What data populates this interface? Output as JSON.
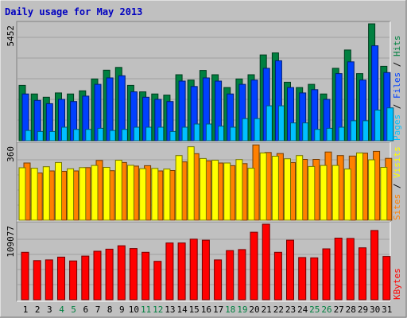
{
  "title": "Daily usage for May 2013",
  "colors": {
    "background": "#c0c0c0",
    "title": "#0000c0",
    "hits": "#008040",
    "files": "#0040ff",
    "pages": "#00c0ff",
    "visits": "#ffff00",
    "sites": "#ff8000",
    "kbytes": "#ff0000",
    "weekend_day": "#008040",
    "weekday": "#000000"
  },
  "chart_data": {
    "type": "bar",
    "categories": [
      "1",
      "2",
      "3",
      "4",
      "5",
      "6",
      "7",
      "8",
      "9",
      "10",
      "11",
      "12",
      "13",
      "14",
      "15",
      "16",
      "17",
      "18",
      "19",
      "20",
      "21",
      "22",
      "23",
      "24",
      "25",
      "26",
      "27",
      "28",
      "29",
      "30",
      "31"
    ],
    "weekend_days": [
      4,
      5,
      11,
      12,
      18,
      19,
      25,
      26
    ],
    "panels": [
      {
        "name": "hits-files-pages",
        "y_tick_label": "5452",
        "ymax": 5452,
        "legend": [
          "Pages",
          "Files",
          "Hits"
        ],
        "series": [
          {
            "name": "Hits",
            "values": [
              2580,
              2180,
              2030,
              2230,
              2180,
              2330,
              2880,
              3290,
              3420,
              2580,
              2280,
              2180,
              2130,
              3080,
              2830,
              3280,
              3080,
              2480,
              2880,
              3080,
              4000,
              4100,
              2730,
              2480,
              2630,
              2180,
              3380,
              4230,
              3130,
              5452,
              3470
            ]
          },
          {
            "name": "Files",
            "values": [
              2180,
              1880,
              1730,
              1930,
              1830,
              2080,
              2630,
              2930,
              3030,
              2280,
              2030,
              1930,
              1830,
              2780,
              2530,
              2930,
              2780,
              2180,
              2630,
              2830,
              3380,
              3730,
              2480,
              2230,
              2380,
              1930,
              3130,
              3680,
              2830,
              4430,
              3180
            ]
          },
          {
            "name": "Pages",
            "values": [
              480,
              430,
              430,
              630,
              530,
              530,
              580,
              480,
              530,
              630,
              630,
              630,
              430,
              630,
              780,
              780,
              680,
              630,
              1030,
              1030,
              1630,
              1630,
              830,
              830,
              530,
              580,
              630,
              930,
              930,
              1430,
              1530
            ]
          }
        ]
      },
      {
        "name": "visits-sites",
        "y_tick_label": "360",
        "ymax": 360,
        "legend": [
          "Sites",
          "Visits"
        ],
        "series": [
          {
            "name": "Visits",
            "values": [
              250,
              248,
              255,
              275,
              245,
              251,
              261,
              252,
              286,
              262,
              246,
              247,
              244,
              308,
              350,
              294,
              286,
              273,
              289,
              248,
              321,
              305,
              293,
              308,
              256,
              261,
              261,
              244,
              321,
              288,
              252
            ]
          },
          {
            "name": "Sites",
            "values": [
              273,
              225,
              235,
              233,
              235,
              251,
              285,
              236,
              275,
              258,
              260,
              235,
              237,
              278,
              317,
              283,
              273,
              260,
              270,
              359,
              323,
              318,
              275,
              290,
              290,
              325,
              308,
              306,
              320,
              328,
              295
            ]
          }
        ]
      },
      {
        "name": "kbytes",
        "y_tick_label": "109077",
        "ymax": 109077,
        "legend": [
          "KBytes"
        ],
        "series": [
          {
            "name": "KBytes",
            "values": [
              68500,
              56500,
              57500,
              61500,
              56000,
              63000,
              70000,
              73000,
              78000,
              74000,
              68500,
              55500,
              82000,
              82000,
              87500,
              86000,
              57500,
              71000,
              72500,
              97500,
              109077,
              68500,
              86000,
              61000,
              60500,
              73500,
              89000,
              88500,
              75000,
              100000,
              62500
            ]
          }
        ]
      }
    ]
  }
}
